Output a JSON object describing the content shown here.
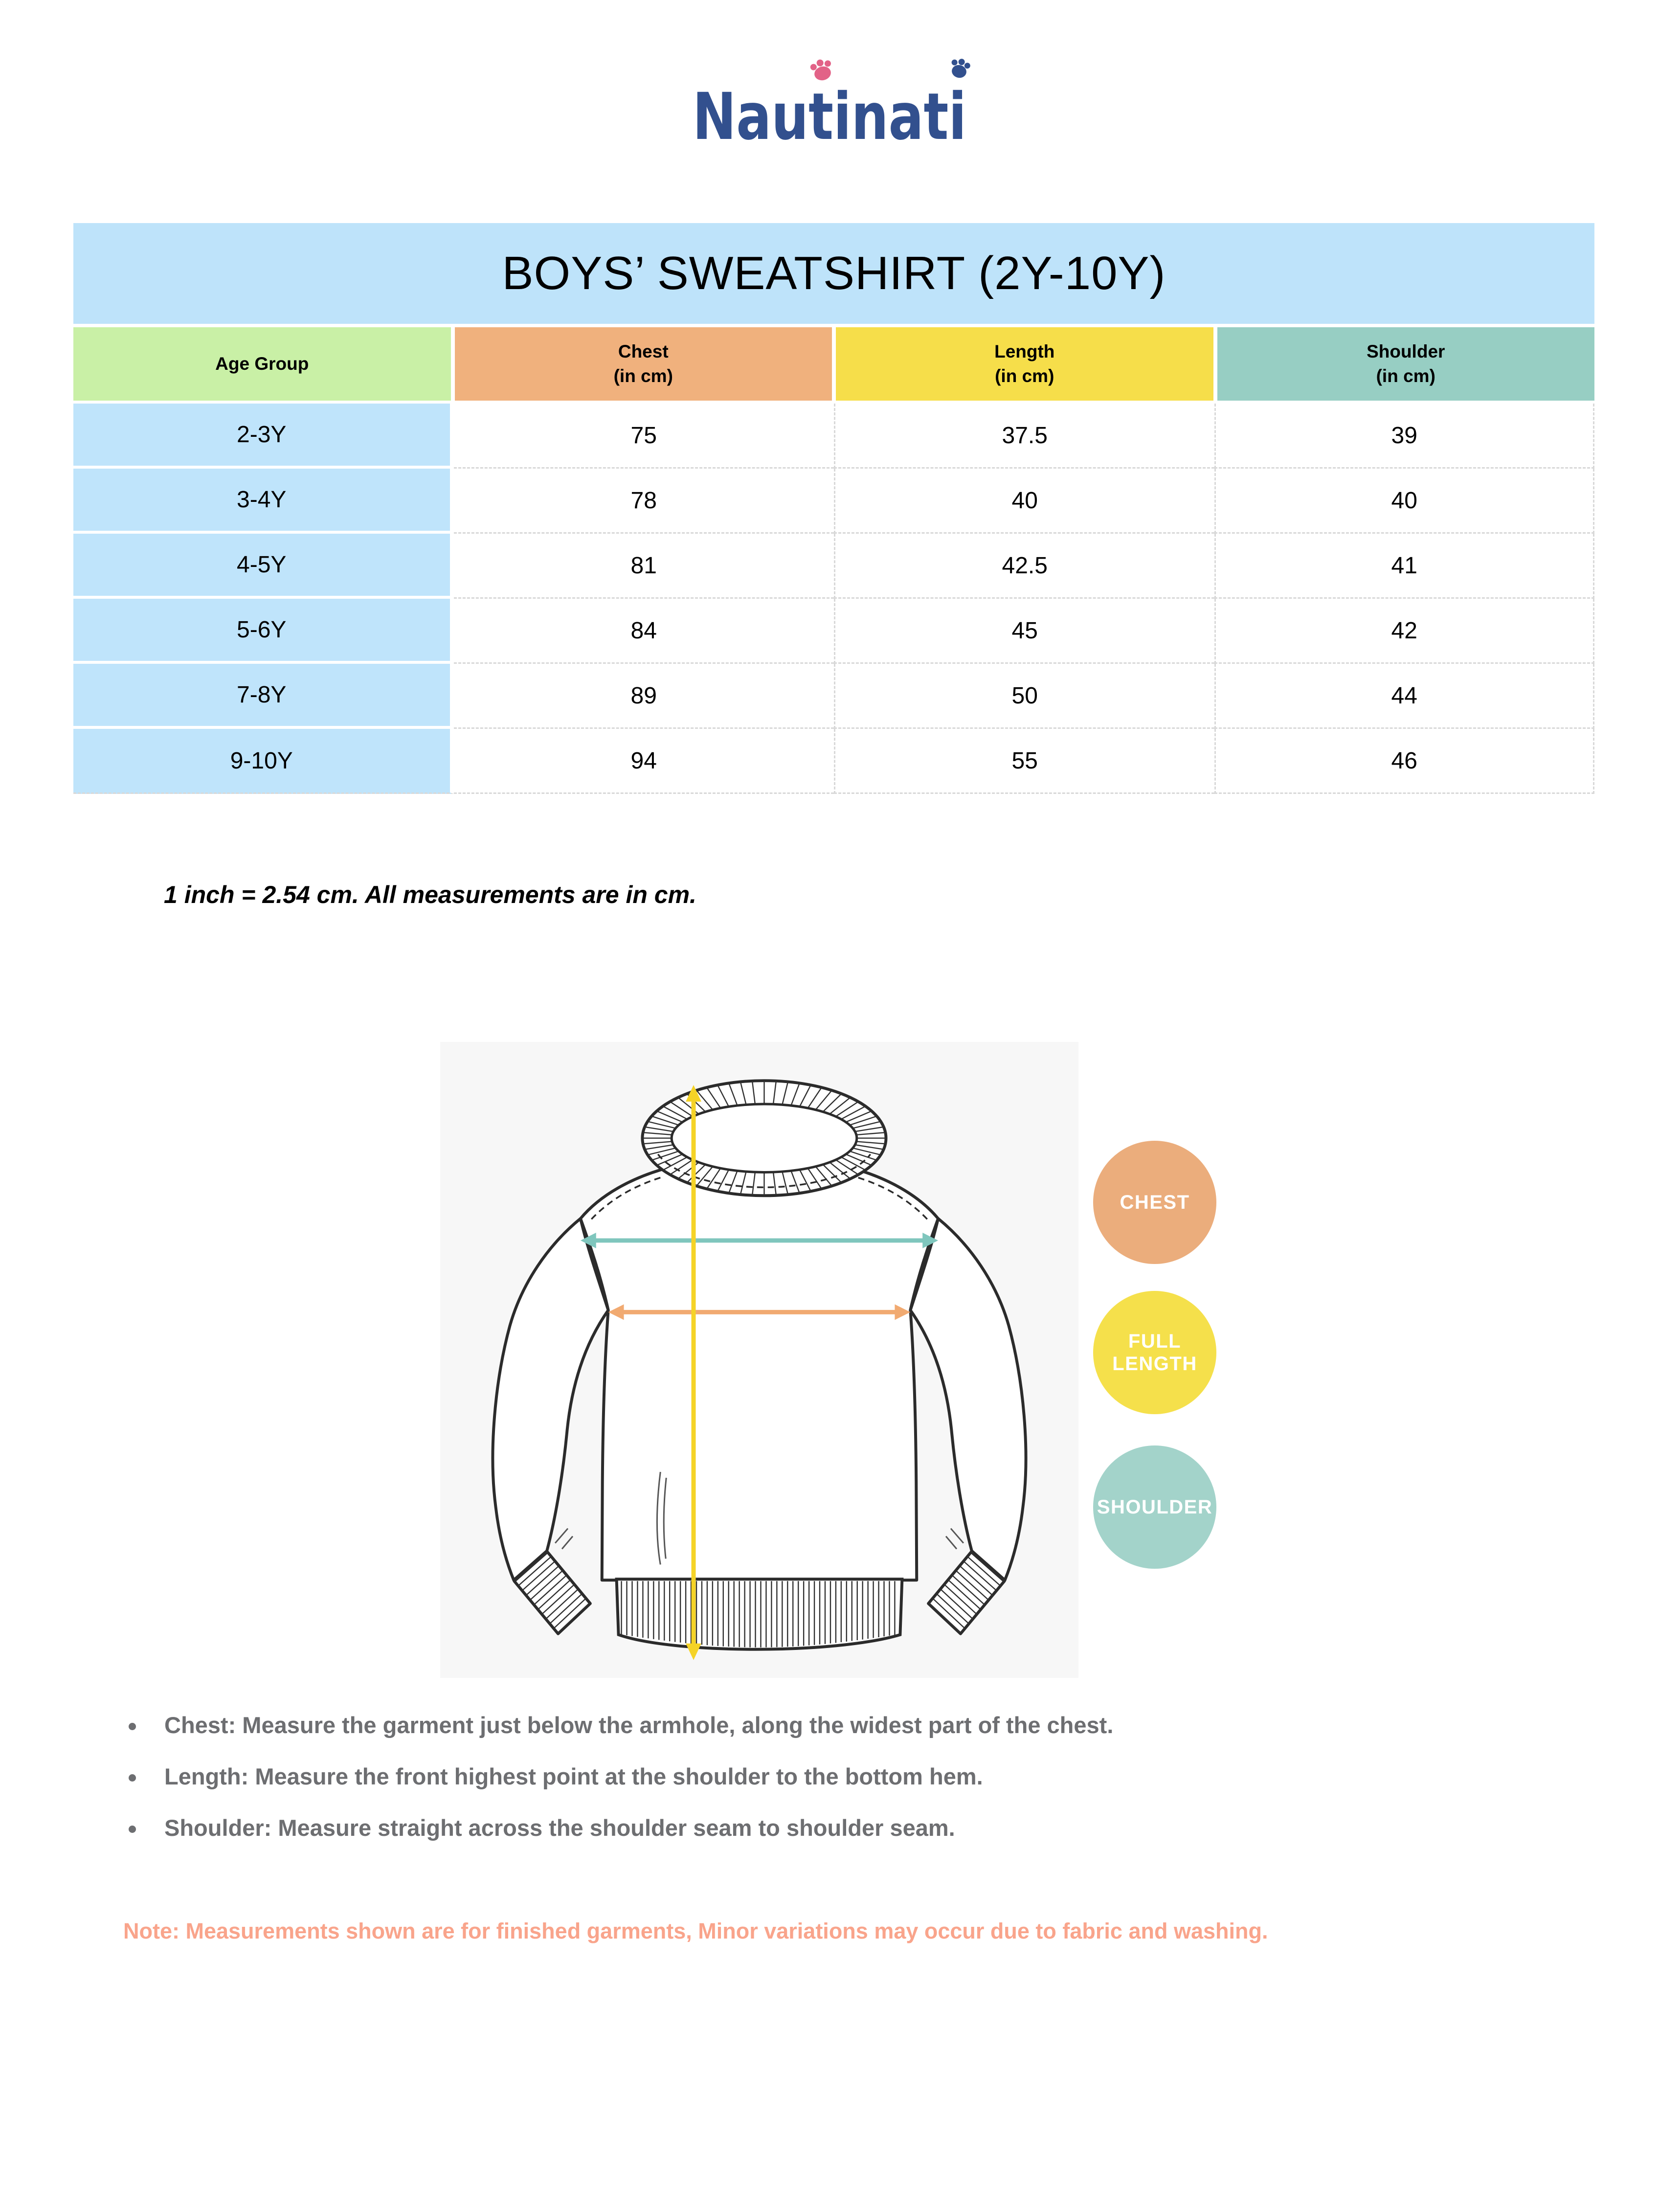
{
  "logo": {
    "text": "Nautinati"
  },
  "size_chart": {
    "title": "BOYS’ SWEATSHIRT (2Y-10Y)",
    "columns": [
      {
        "label": "Age Group",
        "sub": ""
      },
      {
        "label": "Chest",
        "sub": "(in cm)"
      },
      {
        "label": "Length",
        "sub": "(in cm)"
      },
      {
        "label": "Shoulder",
        "sub": "(in cm)"
      }
    ],
    "rows": [
      {
        "age": "2-3Y",
        "chest": "75",
        "length": "37.5",
        "shoulder": "39"
      },
      {
        "age": "3-4Y",
        "chest": "78",
        "length": "40",
        "shoulder": "40"
      },
      {
        "age": "4-5Y",
        "chest": "81",
        "length": "42.5",
        "shoulder": "41"
      },
      {
        "age": "5-6Y",
        "chest": "84",
        "length": "45",
        "shoulder": "42"
      },
      {
        "age": "7-8Y",
        "chest": "89",
        "length": "50",
        "shoulder": "44"
      },
      {
        "age": "9-10Y",
        "chest": "94",
        "length": "55",
        "shoulder": "46"
      }
    ]
  },
  "conversion_note": "1 inch = 2.54 cm. All measurements are in cm.",
  "measurement_badges": [
    {
      "label": "CHEST",
      "color": "#ebad7c"
    },
    {
      "label": "FULL LENGTH",
      "color": "#f5e04b"
    },
    {
      "label": "SHOULDER",
      "color": "#a3d3ca"
    }
  ],
  "measurement_instructions": [
    "Chest: Measure the garment just below the armhole, along the widest part of the chest.",
    "Length: Measure the front highest point at the shoulder to the bottom hem.",
    "Shoulder: Measure straight across the shoulder seam to shoulder seam."
  ],
  "note": "Note: Measurements shown are for finished garments, Minor variations may occur due to fabric and washing.",
  "colors": {
    "title_banner": "#bee3fa",
    "age_header": "#c9f0a6",
    "chest_header": "#f0b17d",
    "length_header": "#f6de4a",
    "shoulder_header": "#97cec3",
    "age_cell": "#bfe4fb",
    "instruction_text": "#6d6e71",
    "note_text": "#f9a48b",
    "logo_blue": "#32508e",
    "paw_pink": "#e26287",
    "arrow_teal": "#7fc6bd",
    "arrow_orange": "#f1aa71",
    "arrow_yellow": "#f5d327"
  }
}
